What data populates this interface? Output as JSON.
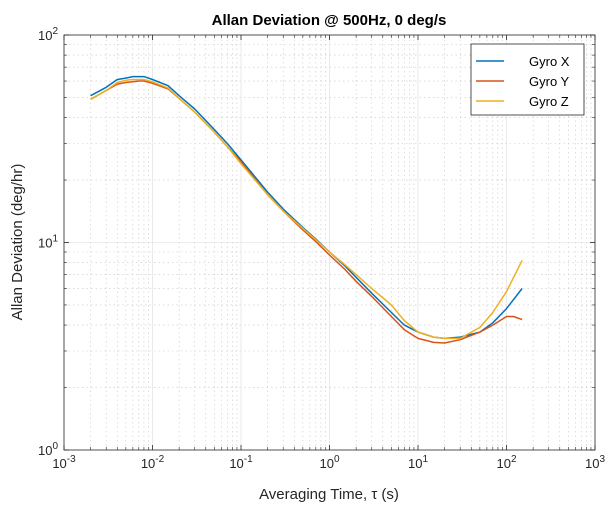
{
  "chart_data": {
    "type": "line",
    "title": "Allan Deviation @ 500Hz, 0 deg/s",
    "xlabel": "Averaging Time, τ (s)",
    "ylabel": "Allan Deviation (deg/hr)",
    "xscale": "log",
    "yscale": "log",
    "xlim": [
      0.001,
      1000
    ],
    "ylim": [
      1,
      100
    ],
    "xtick_labels": [
      {
        "base": "10",
        "exp": "-3"
      },
      {
        "base": "10",
        "exp": "-2"
      },
      {
        "base": "10",
        "exp": "-1"
      },
      {
        "base": "10",
        "exp": "0"
      },
      {
        "base": "10",
        "exp": "1"
      },
      {
        "base": "10",
        "exp": "2"
      },
      {
        "base": "10",
        "exp": "3"
      }
    ],
    "ytick_labels": [
      {
        "base": "10",
        "exp": "0"
      },
      {
        "base": "10",
        "exp": "1"
      },
      {
        "base": "10",
        "exp": "2"
      }
    ],
    "grid": true,
    "legend_position": "top-right",
    "series": [
      {
        "name": "Gyro X",
        "color": "#0072BD",
        "x": [
          0.002,
          0.003,
          0.004,
          0.005,
          0.006,
          0.007,
          0.008,
          0.01,
          0.015,
          0.02,
          0.03,
          0.05,
          0.07,
          0.1,
          0.2,
          0.3,
          0.5,
          0.7,
          1,
          1.5,
          2,
          3,
          5,
          7,
          10,
          15,
          20,
          30,
          50,
          70,
          100,
          150
        ],
        "y": [
          51,
          56,
          61,
          62,
          63,
          63,
          63,
          61,
          57,
          51,
          44,
          35,
          30,
          25,
          17.5,
          14.5,
          11.8,
          10.4,
          9,
          7.7,
          6.8,
          5.7,
          4.6,
          4.0,
          3.7,
          3.5,
          3.45,
          3.5,
          3.7,
          4.1,
          4.8,
          6.0
        ]
      },
      {
        "name": "Gyro Y",
        "color": "#D95319",
        "x": [
          0.002,
          0.003,
          0.004,
          0.005,
          0.006,
          0.007,
          0.008,
          0.01,
          0.015,
          0.02,
          0.03,
          0.05,
          0.07,
          0.1,
          0.2,
          0.3,
          0.5,
          0.7,
          1,
          1.5,
          2,
          3,
          5,
          7,
          10,
          15,
          20,
          30,
          50,
          70,
          100,
          120,
          150
        ],
        "y": [
          49,
          54,
          58,
          59,
          59.5,
          60,
          60,
          58.5,
          55,
          49.5,
          42.5,
          34,
          29,
          24.5,
          17,
          14.2,
          11.5,
          10.1,
          8.7,
          7.4,
          6.5,
          5.5,
          4.4,
          3.8,
          3.45,
          3.3,
          3.28,
          3.4,
          3.7,
          4.0,
          4.4,
          4.4,
          4.25
        ]
      },
      {
        "name": "Gyro Z",
        "color": "#EDB120",
        "x": [
          0.002,
          0.003,
          0.004,
          0.005,
          0.006,
          0.007,
          0.008,
          0.01,
          0.015,
          0.02,
          0.03,
          0.05,
          0.07,
          0.1,
          0.2,
          0.3,
          0.5,
          0.7,
          1,
          1.5,
          2,
          3,
          5,
          7,
          10,
          15,
          20,
          30,
          50,
          70,
          100,
          150
        ],
        "y": [
          49,
          54,
          59,
          60.5,
          61,
          61,
          61,
          59.5,
          55.5,
          49.5,
          42.5,
          34,
          29,
          24,
          17,
          14.2,
          11.7,
          10.3,
          9.0,
          7.8,
          7.0,
          6.0,
          5.0,
          4.2,
          3.7,
          3.5,
          3.45,
          3.45,
          3.9,
          4.6,
          5.8,
          8.2
        ]
      }
    ]
  }
}
